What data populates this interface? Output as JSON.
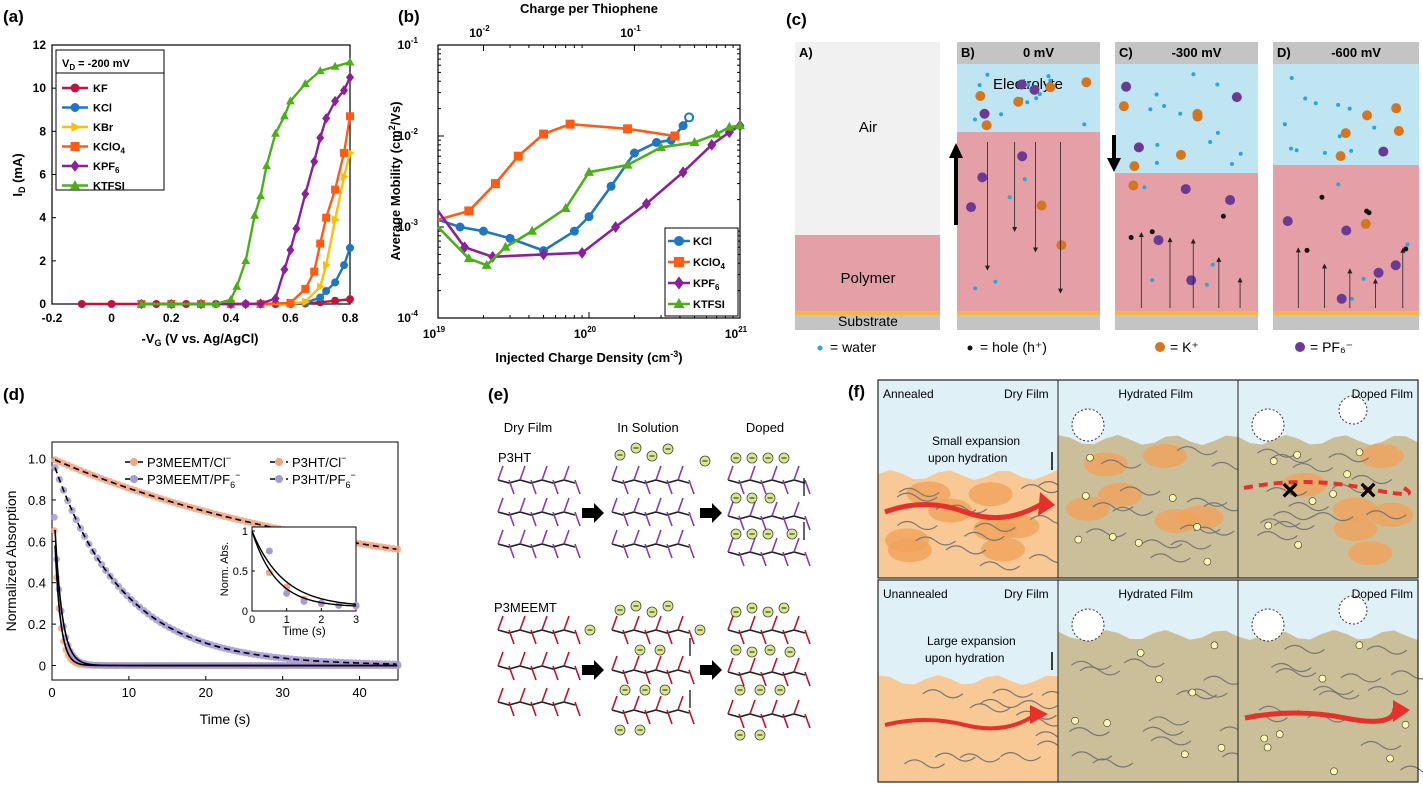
{
  "panels": {
    "a": "(a)",
    "b": "(b)",
    "c": "(c)",
    "d": "(d)",
    "e": "(e)",
    "f": "(f)"
  },
  "chart_data": [
    {
      "id": "a",
      "type": "line",
      "title": "",
      "xlabel": "-V",
      "xlabel_sub": "G",
      "xlabel_rest": " (V vs. Ag/AgCl)",
      "ylabel": "I",
      "ylabel_sub": "D",
      "ylabel_rest": " (mA)",
      "xlim": [
        -0.2,
        0.8
      ],
      "ylim": [
        0,
        12
      ],
      "xticks": [
        -0.2,
        0,
        0.2,
        0.4,
        0.6,
        0.8
      ],
      "xtick_labels": [
        "-0.2",
        "0",
        "0.2",
        "0.4",
        "0.6",
        "0.8"
      ],
      "yticks": [
        0,
        2,
        4,
        6,
        8,
        10,
        12
      ],
      "ytick_labels": [
        "0",
        "2",
        "4",
        "6",
        "8",
        "10",
        "12"
      ],
      "legend_title": "V",
      "legend_title_sub": "D",
      "legend_title_rest": " = -200 mV",
      "legend_position": "top-left",
      "series": [
        {
          "name": "KF",
          "sub": "",
          "color": "#c0143c",
          "marker": "circle",
          "x": [
            -0.1,
            0,
            0.1,
            0.15,
            0.2,
            0.25,
            0.3,
            0.35,
            0.4,
            0.45,
            0.5,
            0.55,
            0.6,
            0.65,
            0.7,
            0.75,
            0.8
          ],
          "y": [
            0,
            0,
            0,
            0,
            0,
            0,
            0,
            0,
            0,
            0,
            0,
            0,
            0,
            0.02,
            0.08,
            0.15,
            0.22
          ]
        },
        {
          "name": "KCl",
          "sub": "",
          "color": "#1f77c4",
          "marker": "circle",
          "x": [
            0.1,
            0.2,
            0.3,
            0.4,
            0.5,
            0.6,
            0.65,
            0.7,
            0.72,
            0.75,
            0.78,
            0.8
          ],
          "y": [
            0,
            0,
            0,
            0,
            0,
            0,
            0.05,
            0.3,
            0.6,
            1.0,
            1.8,
            2.6
          ]
        },
        {
          "name": "KBr",
          "sub": "",
          "color": "#ffbf00",
          "marker": "tri-right",
          "x": [
            0.1,
            0.2,
            0.3,
            0.4,
            0.5,
            0.6,
            0.65,
            0.7,
            0.72,
            0.75,
            0.78,
            0.8
          ],
          "y": [
            0,
            0,
            0,
            0,
            0,
            0,
            0.1,
            0.8,
            1.8,
            3.9,
            5.9,
            7.0
          ]
        },
        {
          "name": "KClO",
          "sub": "4",
          "color": "#ff5b14",
          "marker": "square",
          "x": [
            0.1,
            0.2,
            0.3,
            0.4,
            0.5,
            0.6,
            0.65,
            0.68,
            0.7,
            0.72,
            0.75,
            0.78,
            0.8
          ],
          "y": [
            0,
            0,
            0,
            0,
            0,
            0.05,
            0.7,
            1.5,
            2.8,
            4.0,
            5.3,
            7.0,
            8.7
          ]
        },
        {
          "name": "KPF",
          "sub": "6",
          "color": "#8b1f9c",
          "marker": "diamond",
          "x": [
            0.1,
            0.2,
            0.3,
            0.4,
            0.45,
            0.5,
            0.55,
            0.58,
            0.6,
            0.62,
            0.65,
            0.68,
            0.7,
            0.72,
            0.75,
            0.78,
            0.8
          ],
          "y": [
            0,
            0,
            0,
            0,
            0,
            0.02,
            0.25,
            1.6,
            2.5,
            3.5,
            5.1,
            6.6,
            7.7,
            8.6,
            9.4,
            9.9,
            10.5
          ]
        },
        {
          "name": "KTFSI",
          "sub": "",
          "color": "#4caf1a",
          "marker": "triangle",
          "x": [
            0.1,
            0.2,
            0.3,
            0.35,
            0.4,
            0.42,
            0.45,
            0.48,
            0.5,
            0.52,
            0.55,
            0.58,
            0.6,
            0.65,
            0.7,
            0.75,
            0.8
          ],
          "y": [
            0,
            0,
            0,
            0,
            0.2,
            0.8,
            2.0,
            4.1,
            5.0,
            6.4,
            7.9,
            8.7,
            9.4,
            10.2,
            10.8,
            11.0,
            11.2
          ]
        }
      ]
    },
    {
      "id": "b",
      "type": "line",
      "xlabel": "Injected Charge Density (cm",
      "xlabel_sup": "-3",
      "xlabel_rest": ")",
      "ylabel": "Average Mobility (cm",
      "ylabel_sup": "2",
      "ylabel_rest": "/Vs)",
      "top_label": "Charge per Thiophene",
      "xscale": "log",
      "yscale": "log",
      "xlim": [
        1e+19,
        1e+21
      ],
      "ylim": [
        0.0001,
        0.1
      ],
      "xtick_labels": [
        {
          "base": "10",
          "exp": "19",
          "v": 1e+19
        },
        {
          "base": "10",
          "exp": "20",
          "v": 1e+20
        },
        {
          "base": "10",
          "exp": "21",
          "v": 1e+21
        }
      ],
      "ytick_labels": [
        {
          "base": "10",
          "exp": "-4",
          "v": 0.0001
        },
        {
          "base": "10",
          "exp": "-3",
          "v": 0.001
        },
        {
          "base": "10",
          "exp": "-2",
          "v": 0.01
        },
        {
          "base": "10",
          "exp": "-1",
          "v": 0.1
        }
      ],
      "top_tick_labels": [
        {
          "base": "10",
          "exp": "-2",
          "v": 2e+19
        },
        {
          "base": "10",
          "exp": "-1",
          "v": 2e+20
        }
      ],
      "legend_position": "bottom-right",
      "series": [
        {
          "name": "KCl",
          "sub": "",
          "color": "#1f77c4",
          "marker": "circle",
          "x": [
            1e+19,
            1.4e+19,
            2e+19,
            3e+19,
            5e+19,
            8e+19,
            1e+20,
            1.4e+20,
            2e+20,
            2.8e+20,
            3.5e+20,
            4.2e+20,
            4.6e+20
          ],
          "y": [
            0.0012,
            0.001,
            0.0009,
            0.00075,
            0.00055,
            0.0009,
            0.0013,
            0.0028,
            0.0065,
            0.0085,
            0.009,
            0.013,
            0.016
          ]
        },
        {
          "name": "KClO",
          "sub": "4",
          "color": "#ff5b14",
          "marker": "square",
          "x": [
            1e+19,
            1.6e+19,
            2.4e+19,
            3.4e+19,
            5e+19,
            7.5e+19,
            1.8e+20,
            3.7e+20
          ],
          "y": [
            0.0012,
            0.0015,
            0.003,
            0.006,
            0.0105,
            0.0135,
            0.012,
            0.01
          ]
        },
        {
          "name": "KPF",
          "sub": "6",
          "color": "#8b1f9c",
          "marker": "diamond",
          "x": [
            1e+19,
            1.5e+19,
            2.3e+19,
            5e+19,
            9e+19,
            1.5e+20,
            2.4e+20,
            4.2e+20,
            6.5e+20,
            8.5e+20,
            1e+21
          ],
          "y": [
            0.0015,
            0.0006,
            0.00047,
            0.0005,
            0.00052,
            0.001,
            0.0018,
            0.004,
            0.008,
            0.011,
            0.013
          ]
        },
        {
          "name": "KTFSI",
          "sub": "",
          "color": "#4caf1a",
          "marker": "triangle",
          "x": [
            1e+19,
            1.6e+19,
            2.1e+19,
            2.8e+19,
            4.2e+19,
            7e+19,
            1e+20,
            1.8e+20,
            3e+20,
            5e+20,
            7e+20,
            8.5e+20,
            1e+21
          ],
          "y": [
            0.001,
            0.00045,
            0.00038,
            0.0006,
            0.0009,
            0.0016,
            0.004,
            0.0048,
            0.0075,
            0.0085,
            0.0105,
            0.0125,
            0.013
          ]
        }
      ]
    },
    {
      "id": "d",
      "type": "scatter",
      "xlabel": "Time (s)",
      "ylabel": "Normalized Absorption",
      "xlim": [
        0,
        45
      ],
      "ylim": [
        -0.07,
        1.08
      ],
      "xticks": [
        0,
        10,
        20,
        30,
        40
      ],
      "yticks": [
        0,
        0.2,
        0.4,
        0.6,
        0.8,
        1.0
      ],
      "ytick_labels": [
        "0",
        "0.2",
        "0.4",
        "0.6",
        "0.8",
        "1.0"
      ],
      "legend_position": "top-right",
      "legend": [
        {
          "label": "P3MEEMT/Cl",
          "sup": "−",
          "style": "marker",
          "color": "#f4a482"
        },
        {
          "label": "P3HT/Cl",
          "sup": "−",
          "style": "dashed",
          "color": "#f4a482"
        },
        {
          "label": "P3MEEMT/PF",
          "sub": "6",
          "sup": "−",
          "style": "marker",
          "color": "#a49ad8"
        },
        {
          "label": "P3HT/PF",
          "sub": "6",
          "sup": "−",
          "style": "dashed",
          "color": "#a49ad8"
        }
      ],
      "series": [
        {
          "name": "P3HT/Cl−",
          "tau": 40,
          "offset": 0.35,
          "color": "#f4a482"
        },
        {
          "name": "P3HT/PF6−",
          "tau": 9,
          "offset": 0,
          "color": "#a49ad8"
        },
        {
          "name": "P3MEEMT/Cl−",
          "tau": 0.7,
          "offset": 0,
          "color": "#f4a482"
        },
        {
          "name": "P3MEEMT/PF6−",
          "tau": 0.9,
          "offset": 0,
          "color": "#a49ad8"
        }
      ],
      "inset": {
        "xlabel": "Time (s)",
        "ylabel": "Norm. Abs.",
        "xlim": [
          0,
          3
        ],
        "ylim": [
          0,
          1.05
        ],
        "xticks": [
          0,
          1,
          2,
          3
        ],
        "yticks": [
          0,
          0.5,
          1
        ],
        "ytick_labels": [
          "0",
          "0.5",
          "1"
        ],
        "points_cl": [
          [
            0.5,
            0.48
          ],
          [
            1,
            0.3
          ],
          [
            1.5,
            0.15
          ],
          [
            2,
            0.09
          ],
          [
            2.5,
            0.07
          ],
          [
            3,
            0.06
          ]
        ],
        "points_pf": [
          [
            0.5,
            0.75
          ],
          [
            1,
            0.22
          ],
          [
            1.5,
            0.12
          ],
          [
            2,
            0.1
          ],
          [
            2.5,
            0.07
          ],
          [
            3,
            0.07
          ]
        ]
      }
    }
  ],
  "panel_c": {
    "columns": [
      {
        "title": "A)",
        "voltage": ""
      },
      {
        "title": "B)",
        "voltage": "0 mV"
      },
      {
        "title": "C)",
        "voltage": "-300 mV"
      },
      {
        "title": "D)",
        "voltage": "-600 mV"
      }
    ],
    "air_label": "Air",
    "polymer_label": "Polymer",
    "substrate_label": "Substrate",
    "electrolyte_label": "Electrolyte",
    "legend": [
      {
        "symbol": "•",
        "text": "= water",
        "color": "#2aa6d8"
      },
      {
        "symbol": "•",
        "text": "= hole (h⁺)",
        "color": "#111111"
      },
      {
        "symbol": "●",
        "text": "= K⁺",
        "color": "#d6761c"
      },
      {
        "symbol": "●",
        "text": "= PF₆⁻",
        "color": "#6a3a95"
      }
    ],
    "colors": {
      "air": "#f1f1f1",
      "electrolyte": "#bfe4f2",
      "polymer": "#e5a0a7",
      "substrate": "#c4c4c4",
      "substrate_line": "#f6b545",
      "header": "#c4c4c4"
    }
  },
  "panel_e": {
    "headers": [
      "Dry Film",
      "In Solution",
      "Doped"
    ],
    "row_labels": [
      "P3HT",
      "P3MEEMT"
    ]
  },
  "panel_f": {
    "top_row": {
      "cells": [
        "Annealed",
        "Dry Film",
        "Hydrated Film",
        "Doped Film"
      ],
      "note": "Small expansion",
      "note2": "upon hydration"
    },
    "bottom_row": {
      "cells": [
        "Unannealed",
        "Dry Film",
        "Hydrated Film",
        "Doped Film"
      ],
      "note": "Large expansion",
      "note2": "upon hydration"
    }
  }
}
